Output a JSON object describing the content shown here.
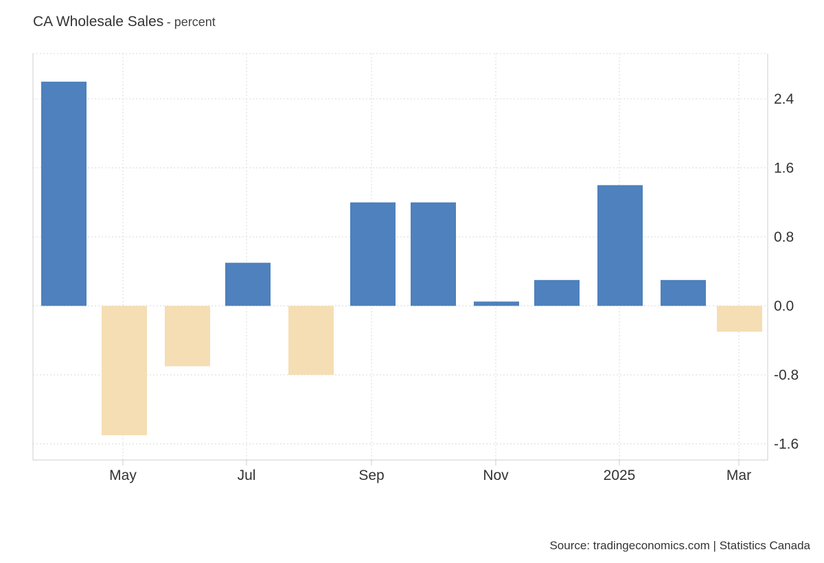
{
  "title": "CA Wholesale Sales",
  "subtitle": "- percent",
  "source": "Source: tradingeconomics.com | Statistics Canada",
  "chart_data": {
    "type": "bar",
    "title": "CA Wholesale Sales",
    "subtitle": "percent",
    "categories": [
      "Apr 2024",
      "May 2024",
      "Jun 2024",
      "Jul 2024",
      "Aug 2024",
      "Sep 2024",
      "Oct 2024",
      "Nov 2024",
      "Dec 2024",
      "Jan 2025",
      "Feb 2025",
      "Mar 2025"
    ],
    "values": [
      2.6,
      -1.5,
      -0.7,
      0.5,
      -0.8,
      1.2,
      1.2,
      0.05,
      0.3,
      1.4,
      0.3,
      -0.3
    ],
    "x_ticks": [
      "May",
      "Jul",
      "Sep",
      "Nov",
      "2025",
      "Mar"
    ],
    "y_ticks": [
      "2.4",
      "1.6",
      "0.8",
      "0.0",
      "-0.8",
      "-1.6"
    ],
    "ylim": [
      -1.8,
      2.9
    ],
    "grid": true,
    "y_axis_side": "right",
    "colors": {
      "positive": "#4e81bd",
      "negative": "#f5deb3",
      "grid": "#d9d9d9",
      "axis": "#cccccc"
    }
  }
}
